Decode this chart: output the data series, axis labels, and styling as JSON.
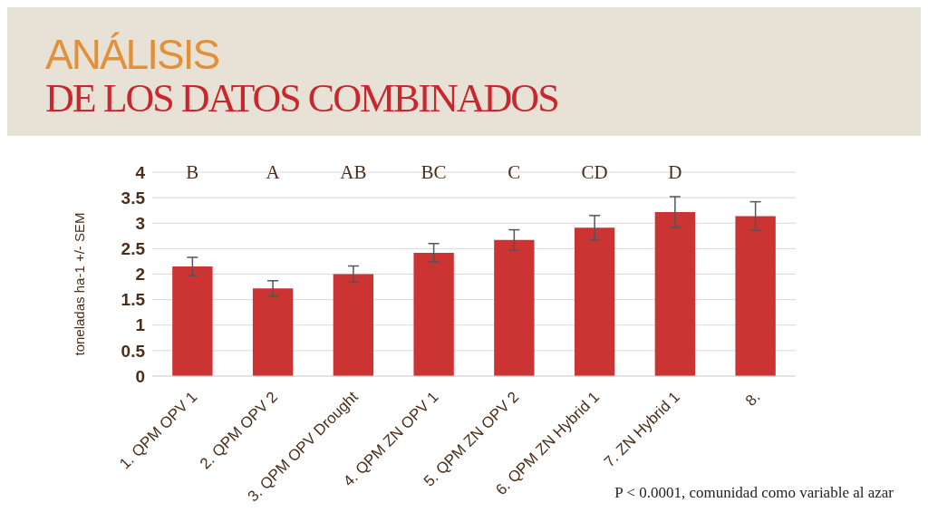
{
  "chart_data": {
    "type": "bar",
    "title": "ANÁLISIS",
    "subtitle": "DE LOS DATOS COMBINADOS",
    "ylabel": "toneladas ha-1 +/- SEM",
    "categories": [
      "1. QPM OPV 1",
      "2. QPM OPV 2",
      "3. QPM OPV Drought",
      "4. QPM ZN OPV 1",
      "5. QPM ZN OPV 2",
      "6. QPM ZN Hybrid 1",
      "7. ZN Hybrid 1",
      "8."
    ],
    "values": [
      2.15,
      1.72,
      2.0,
      2.42,
      2.67,
      2.91,
      3.22,
      3.14
    ],
    "errors": [
      0.18,
      0.15,
      0.16,
      0.18,
      0.2,
      0.24,
      0.3,
      0.28
    ],
    "color": "#cc3333",
    "ylim": [
      0,
      4
    ],
    "yticks": [
      0,
      0.5,
      1,
      1.5,
      2,
      2.5,
      3,
      3.5,
      4
    ],
    "grid": "y",
    "legend": false,
    "annotations": [
      "B",
      "A",
      "AB",
      "BC",
      "C",
      "CD",
      "D",
      "P < 0.0001, comunidad como variable al azar"
    ]
  }
}
